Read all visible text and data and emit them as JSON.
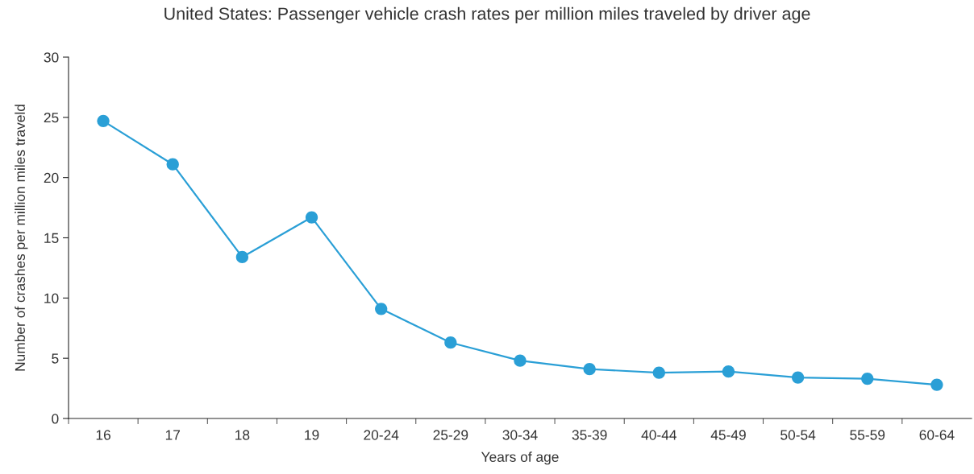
{
  "chart_data": {
    "type": "line",
    "title": "United States: Passenger vehicle crash rates per million miles traveled by driver age",
    "xlabel": "Years of age",
    "ylabel": "Number of crashes per million miles traveld",
    "categories": [
      "16",
      "17",
      "18",
      "19",
      "20-24",
      "25-29",
      "30-34",
      "35-39",
      "40-44",
      "45-49",
      "50-54",
      "55-59",
      "60-64"
    ],
    "series": [
      {
        "color": "#2a9fd6",
        "values": [
          24.7,
          21.1,
          13.4,
          16.7,
          9.1,
          6.3,
          4.8,
          4.1,
          3.8,
          3.9,
          3.4,
          3.3,
          2.8
        ]
      }
    ],
    "ylim": [
      0,
      30
    ],
    "yticks": [
      0,
      5,
      10,
      15,
      20,
      25,
      30
    ],
    "marker": "circle",
    "line_style": "solid",
    "grid": false,
    "legend": false
  }
}
